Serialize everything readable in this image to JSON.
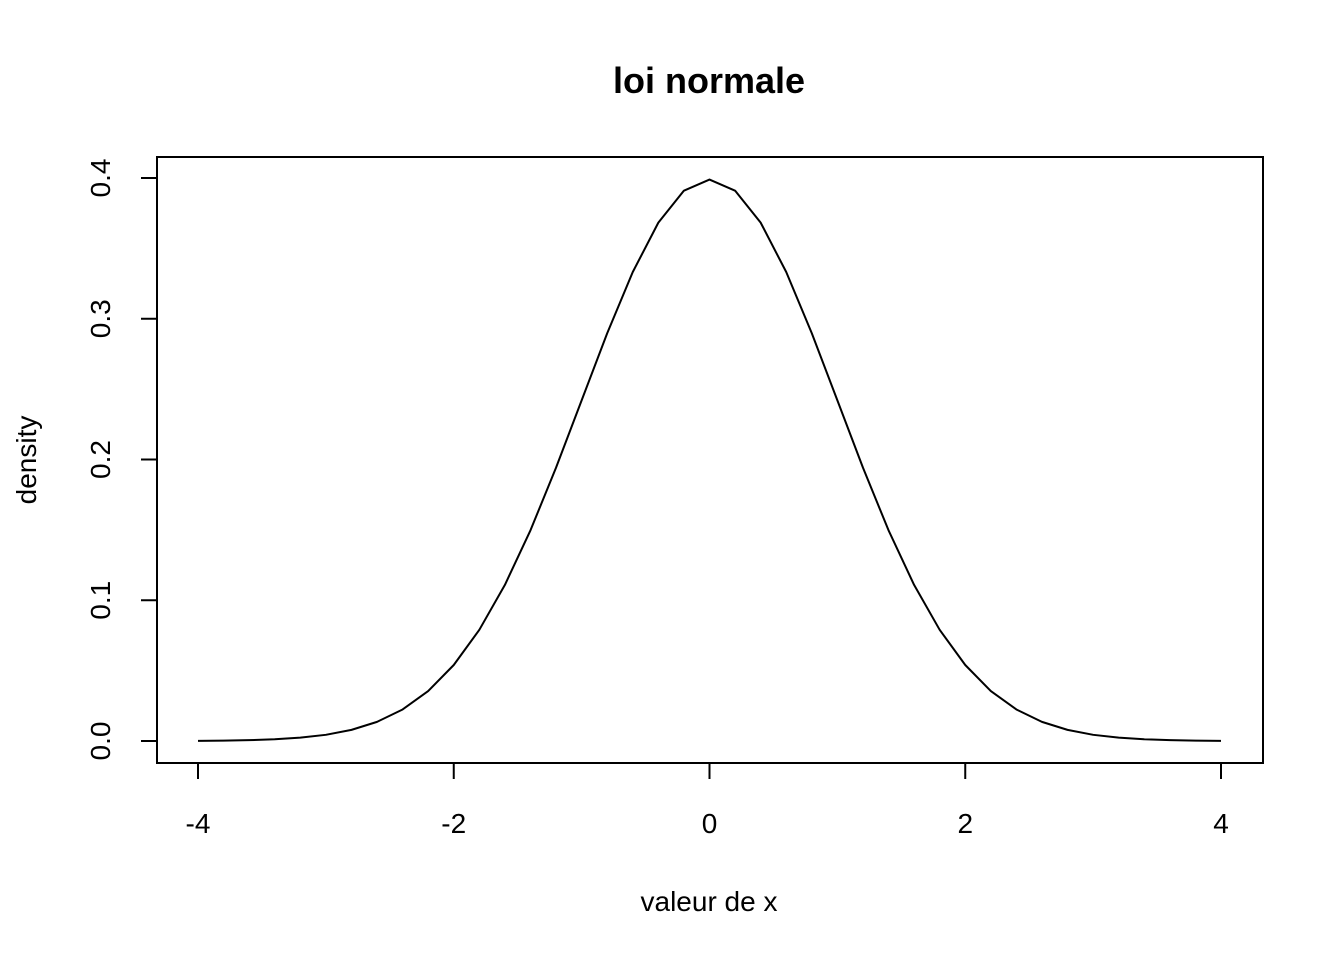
{
  "chart_data": {
    "type": "line",
    "title": "loi normale",
    "xlabel": "valeur de x",
    "ylabel": "density",
    "xlim": [
      -4,
      4
    ],
    "ylim": [
      0,
      0.4
    ],
    "x_ticks": [
      -4,
      -2,
      0,
      2,
      4
    ],
    "x_tick_labels": [
      "-4",
      "-2",
      "0",
      "2",
      "4"
    ],
    "y_ticks": [
      0.0,
      0.1,
      0.2,
      0.3,
      0.4
    ],
    "y_tick_labels": [
      "0.0",
      "0.1",
      "0.2",
      "0.3",
      "0.4"
    ],
    "grid": false,
    "legend": "none",
    "series": [
      {
        "color": "#000000",
        "x": [
          -4,
          -3.8,
          -3.6,
          -3.4,
          -3.2,
          -3,
          -2.8,
          -2.6,
          -2.4,
          -2.2,
          -2,
          -1.8,
          -1.6,
          -1.4,
          -1.2,
          -1,
          -0.8,
          -0.6,
          -0.4,
          -0.2,
          0,
          0.2,
          0.4,
          0.6,
          0.8,
          1,
          1.2,
          1.4,
          1.6,
          1.8,
          2,
          2.2,
          2.4,
          2.6,
          2.8,
          3,
          3.2,
          3.4,
          3.6,
          3.8,
          4
        ],
        "y": [
          0.0001,
          0.0003,
          0.0006,
          0.0012,
          0.0024,
          0.0044,
          0.0079,
          0.0136,
          0.0224,
          0.0355,
          0.054,
          0.079,
          0.1109,
          0.1497,
          0.1942,
          0.242,
          0.2897,
          0.3332,
          0.3683,
          0.391,
          0.3989,
          0.391,
          0.3683,
          0.3332,
          0.2897,
          0.242,
          0.1942,
          0.1497,
          0.1109,
          0.079,
          0.054,
          0.0355,
          0.0224,
          0.0136,
          0.0079,
          0.0044,
          0.0024,
          0.0012,
          0.0006,
          0.0003,
          0.0001
        ]
      }
    ]
  }
}
